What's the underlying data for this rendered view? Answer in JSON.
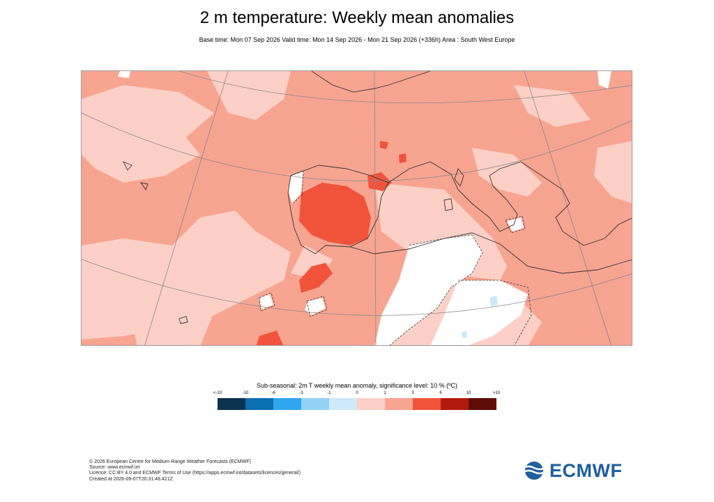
{
  "title": "2 m temperature: Weekly mean anomalies",
  "subtitle": "Base time: Mon 07 Sep 2026 Valid time: Mon 14 Sep 2026 - Mon 21 Sep 2026 (+336h) Area : South West Europe",
  "legend": {
    "title": "Sub-seasonal: 2m T weekly mean anomaly, significance level: 10 % (ºC)",
    "ticks": [
      "<-10",
      "-10",
      "-6",
      "-3",
      "-1",
      "0",
      "1",
      "3",
      "6",
      "10",
      ">10"
    ],
    "colors": [
      "#0a3350",
      "#0b6fb4",
      "#2fa7ee",
      "#93d3f7",
      "#cde9fa",
      "#fcd0c6",
      "#f7a491",
      "#f2533b",
      "#b11a0a",
      "#5e0c06"
    ]
  },
  "map": {
    "colors": {
      "background": "#f7a491",
      "light_pink": "#fcd0c6",
      "red": "#f2533b",
      "white": "#ffffff",
      "light_blue": "#cde9fa",
      "coast": "#333333",
      "grid": "#888888"
    }
  },
  "footer": {
    "line1": "© 2026 European Centre for Medium-Range Weather Forecasts (ECMWF)",
    "line2": "Source: www.ecmwf.int",
    "line3": "Licence: CC BY 4.0 and ECMWF Terms of Use (https://apps.ecmwf.int/datasets/licences/general/)",
    "line4": "Created at 2026-09-07T20:31:48.421Z"
  },
  "logo": {
    "text": "ECMWF",
    "color": "#1f5fa0"
  }
}
